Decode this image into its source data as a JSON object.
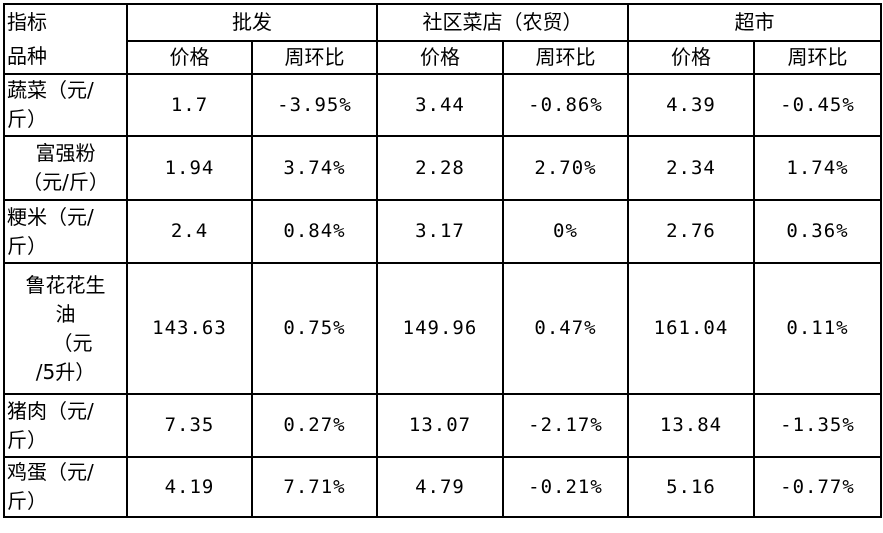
{
  "corner": {
    "line1": "指标",
    "line2": "品种"
  },
  "groups": [
    "批发",
    "社区菜店（农贸）",
    "超市"
  ],
  "subheaders": [
    "价格",
    "周环比",
    "价格",
    "周环比",
    "价格",
    "周环比"
  ],
  "rows": [
    {
      "label_lines": [
        "蔬菜（元/",
        "斤）"
      ],
      "cells": [
        "1.7",
        "-3.95%",
        "3.44",
        "-0.86%",
        "4.39",
        "-0.45%"
      ]
    },
    {
      "label_lines": [
        "富强粉",
        "（元/斤）"
      ],
      "cells": [
        "1.94",
        "3.74%",
        "2.28",
        "2.70%",
        "2.34",
        "1.74%"
      ]
    },
    {
      "label_lines": [
        "粳米（元/",
        "斤）"
      ],
      "cells": [
        "2.4",
        "0.84%",
        "3.17",
        "0%",
        "2.76",
        "0.36%"
      ]
    },
    {
      "label_lines": [
        "鲁花花生",
        "油",
        "（元",
        "/5升）"
      ],
      "cells": [
        "143.63",
        "0.75%",
        "149.96",
        "0.47%",
        "161.04",
        "0.11%"
      ]
    },
    {
      "label_lines": [
        "猪肉（元/",
        "斤）"
      ],
      "cells": [
        "7.35",
        "0.27%",
        "13.07",
        "-2.17%",
        "13.84",
        "-1.35%"
      ]
    },
    {
      "label_lines": [
        "鸡蛋（元/",
        "斤）"
      ],
      "cells": [
        "4.19",
        "7.71%",
        "4.79",
        "-0.21%",
        "5.16",
        "-0.77%"
      ]
    }
  ]
}
